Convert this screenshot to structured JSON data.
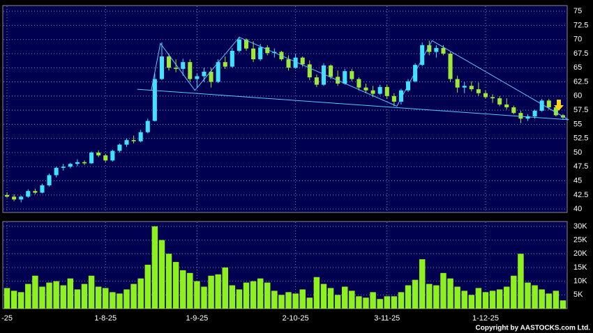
{
  "chart_data": [
    {
      "type": "candlestick",
      "up_color": "#3fe3ff",
      "down_color": "#9ee83a",
      "line_color": "#5fc8ff",
      "xlim": [
        -0.5,
        79.5
      ],
      "ylim": [
        39.4,
        76
      ],
      "yticks": [
        40,
        42.5,
        45,
        47.5,
        50,
        52.5,
        55,
        57.5,
        60,
        62.5,
        65,
        67.5,
        70,
        72.5,
        75
      ],
      "xticks": [
        {
          "value": 0,
          "label": "-25"
        },
        {
          "value": 14,
          "label": "1-8-25"
        },
        {
          "value": 27,
          "label": "1-9-25"
        },
        {
          "value": 41,
          "label": "2-10-25"
        },
        {
          "value": 54,
          "label": "3-11-25"
        },
        {
          "value": 68,
          "label": "1-12-25"
        }
      ],
      "ohlc": [
        [
          42.5,
          43,
          42,
          42.2
        ],
        [
          42.2,
          42.6,
          41.4,
          41.7
        ],
        [
          41.7,
          42.4,
          41.2,
          42.2
        ],
        [
          42.2,
          43.5,
          42,
          43.2
        ],
        [
          43.2,
          43.6,
          42.6,
          42.9
        ],
        [
          42.9,
          44.5,
          42.8,
          44.2
        ],
        [
          44.2,
          46.3,
          44,
          46
        ],
        [
          46,
          47.5,
          45.6,
          47.3
        ],
        [
          47.3,
          48,
          46.8,
          47.5
        ],
        [
          47.5,
          48.2,
          47.2,
          48
        ],
        [
          48,
          48.8,
          47.6,
          48.3
        ],
        [
          48.3,
          48.6,
          47.8,
          48.1
        ],
        [
          48.1,
          50.2,
          48,
          50
        ],
        [
          50,
          50.4,
          49.2,
          49.5
        ],
        [
          49.5,
          49.8,
          48.3,
          48.6
        ],
        [
          48.6,
          50.5,
          48.4,
          50.3
        ],
        [
          50.3,
          51.6,
          50,
          51.4
        ],
        [
          51.4,
          52.5,
          51,
          52.2
        ],
        [
          52.2,
          53,
          51.6,
          52
        ],
        [
          52,
          54,
          51.8,
          53.6
        ],
        [
          53.6,
          56,
          53.4,
          55.6
        ],
        [
          55.6,
          64,
          55.5,
          63
        ],
        [
          63,
          69.5,
          62.8,
          67
        ],
        [
          67,
          67.5,
          64.5,
          65
        ],
        [
          65,
          66.5,
          64.2,
          64.8
        ],
        [
          64.8,
          66.6,
          63.6,
          66
        ],
        [
          66,
          66.5,
          62.5,
          63
        ],
        [
          63,
          64,
          61.5,
          63.5
        ],
        [
          63.5,
          65,
          62.5,
          64.3
        ],
        [
          64.3,
          65,
          61.5,
          62.5
        ],
        [
          62.5,
          66.5,
          62.3,
          66
        ],
        [
          66,
          67,
          64.8,
          65.2
        ],
        [
          65.2,
          68.5,
          65,
          68
        ],
        [
          68,
          70.5,
          67.7,
          70
        ],
        [
          70,
          70.2,
          68,
          68.4
        ],
        [
          68.4,
          69.7,
          66,
          66.5
        ],
        [
          66.5,
          69.2,
          66.2,
          68.6
        ],
        [
          68.6,
          69,
          67.2,
          67.6
        ],
        [
          67.6,
          68.4,
          66.8,
          67.8
        ],
        [
          67.8,
          68,
          66.2,
          66.5
        ],
        [
          66.5,
          67.2,
          64.5,
          65
        ],
        [
          65,
          67.5,
          64.8,
          66.8
        ],
        [
          66.8,
          67,
          65.2,
          65.6
        ],
        [
          65.6,
          66.3,
          62.8,
          63.3
        ],
        [
          63.3,
          63.8,
          61.6,
          62
        ],
        [
          62,
          65.8,
          61.8,
          65.4
        ],
        [
          65.4,
          65.6,
          63,
          63.4
        ],
        [
          63.4,
          64.5,
          61.8,
          62.2
        ],
        [
          62.2,
          64.8,
          62,
          64.4
        ],
        [
          64.4,
          64.8,
          62.6,
          63
        ],
        [
          63,
          63.3,
          61,
          61.5
        ],
        [
          61.5,
          62.2,
          60.5,
          61
        ],
        [
          61,
          61.8,
          59.8,
          60.4
        ],
        [
          60.4,
          62,
          60.2,
          61.6
        ],
        [
          61.6,
          62,
          59.5,
          60
        ],
        [
          60,
          60.5,
          58.2,
          59
        ],
        [
          59,
          61.3,
          58.5,
          61
        ],
        [
          61,
          63,
          60.7,
          62.6
        ],
        [
          62.6,
          65.8,
          62.4,
          65.5
        ],
        [
          65.5,
          69.5,
          65.3,
          69
        ],
        [
          69,
          69.8,
          67.2,
          67.8
        ],
        [
          67.8,
          69,
          66.8,
          68.5
        ],
        [
          68.5,
          69,
          67.2,
          67.5
        ],
        [
          67.5,
          67.8,
          62.5,
          63
        ],
        [
          63,
          63.6,
          60.6,
          61.5
        ],
        [
          61.5,
          62.5,
          60.5,
          61.8
        ],
        [
          61.8,
          62.6,
          60.8,
          61.2
        ],
        [
          61.2,
          62.4,
          60,
          60.5
        ],
        [
          60.5,
          61,
          59.5,
          59.8
        ],
        [
          59.8,
          60.3,
          58.8,
          59.6
        ],
        [
          59.6,
          60,
          58.2,
          58.5
        ],
        [
          58.5,
          59.6,
          57.6,
          58
        ],
        [
          58,
          58.3,
          56.8,
          57
        ],
        [
          57,
          57.4,
          55.2,
          56
        ],
        [
          56,
          56.8,
          55.6,
          56.4
        ],
        [
          56.4,
          57.6,
          56,
          57.4
        ],
        [
          57.4,
          59.5,
          57.2,
          59.2
        ],
        [
          59.2,
          59.5,
          57.6,
          58
        ],
        [
          58,
          58.2,
          56.4,
          56.6
        ],
        [
          56.6,
          56.8,
          55.8,
          56.2
        ]
      ],
      "lines": [
        [
          [
            20.5,
            61
          ],
          [
            21.8,
            69.3
          ],
          [
            26.7,
            61
          ],
          [
            33,
            70.4
          ],
          [
            55.4,
            58.2
          ],
          [
            60.4,
            69.8
          ],
          [
            79.8,
            55.8
          ]
        ],
        [
          [
            18.5,
            61.2
          ],
          [
            79.8,
            55.8
          ]
        ]
      ]
    },
    {
      "type": "bar",
      "color": "#8ef01e",
      "ylim": [
        0,
        31750
      ],
      "yticks": [
        {
          "value": 5000,
          "label": "5K"
        },
        {
          "value": 10000,
          "label": "10K"
        },
        {
          "value": 15000,
          "label": "15K"
        },
        {
          "value": 20000,
          "label": "20K"
        },
        {
          "value": 25000,
          "label": "25K"
        },
        {
          "value": 30000,
          "label": "30K"
        }
      ],
      "values": [
        7500,
        6500,
        6000,
        9000,
        12000,
        8000,
        9500,
        10000,
        8500,
        11000,
        7000,
        9000,
        12000,
        8000,
        7500,
        6000,
        5500,
        7000,
        9000,
        11000,
        16000,
        30000,
        25000,
        20000,
        17000,
        14000,
        13000,
        10000,
        8000,
        12000,
        12500,
        15000,
        8500,
        7000,
        9500,
        10000,
        11000,
        9500,
        6500,
        5000,
        6000,
        5500,
        7000,
        4000,
        11500,
        9000,
        7500,
        5000,
        8000,
        6500,
        4500,
        4000,
        6000,
        3500,
        4500,
        4500,
        6000,
        8500,
        10500,
        18000,
        9000,
        8500,
        13000,
        11000,
        8000,
        6500,
        5000,
        7500,
        6000,
        6500,
        7000,
        8000,
        12000,
        20000,
        9500,
        8500,
        7000,
        5500,
        6500,
        3000
      ],
      "note": "Copyright by AASTOCKS.com Ltd."
    }
  ]
}
